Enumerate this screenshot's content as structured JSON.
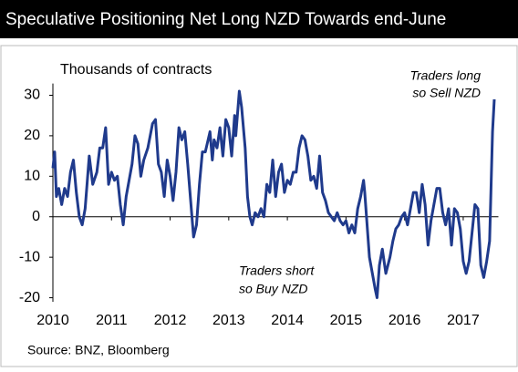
{
  "chart_data": {
    "type": "line",
    "title": "Speculative Positioning Net Long NZD Towards end-June",
    "y_label": "Thousands of contracts",
    "source": "Source: BNZ, Bloomberg",
    "annotations": [
      [
        "Traders long",
        "so Sell NZD"
      ],
      [
        "Traders short",
        "so Buy NZD"
      ]
    ],
    "xlim": [
      2010,
      2017.6
    ],
    "xticks": [
      2010,
      2011,
      2012,
      2013,
      2014,
      2015,
      2016,
      2017
    ],
    "ylim": [
      -21,
      32
    ],
    "yticks": [
      -20,
      -10,
      0,
      10,
      20,
      30
    ],
    "x": [
      2010.0,
      2010.03,
      2010.06,
      2010.1,
      2010.15,
      2010.2,
      2010.25,
      2010.3,
      2010.35,
      2010.4,
      2010.45,
      2010.5,
      2010.55,
      2010.62,
      2010.68,
      2010.75,
      2010.8,
      2010.85,
      2010.9,
      2010.95,
      2011.0,
      2011.05,
      2011.1,
      2011.15,
      2011.2,
      2011.25,
      2011.3,
      2011.35,
      2011.4,
      2011.45,
      2011.5,
      2011.55,
      2011.62,
      2011.7,
      2011.75,
      2011.8,
      2011.85,
      2011.9,
      2011.95,
      2012.0,
      2012.05,
      2012.1,
      2012.15,
      2012.2,
      2012.25,
      2012.3,
      2012.35,
      2012.4,
      2012.45,
      2012.5,
      2012.55,
      2012.6,
      2012.68,
      2012.72,
      2012.75,
      2012.8,
      2012.85,
      2012.9,
      2012.95,
      2013.0,
      2013.05,
      2013.1,
      2013.12,
      2013.18,
      2013.22,
      2013.28,
      2013.32,
      2013.36,
      2013.4,
      2013.45,
      2013.5,
      2013.55,
      2013.6,
      2013.65,
      2013.7,
      2013.75,
      2013.8,
      2013.85,
      2013.9,
      2013.95,
      2014.0,
      2014.05,
      2014.1,
      2014.15,
      2014.2,
      2014.25,
      2014.3,
      2014.35,
      2014.4,
      2014.45,
      2014.5,
      2014.55,
      2014.6,
      2014.65,
      2014.7,
      2014.75,
      2014.8,
      2014.85,
      2014.9,
      2014.95,
      2015.0,
      2015.05,
      2015.1,
      2015.15,
      2015.2,
      2015.25,
      2015.3,
      2015.32,
      2015.36,
      2015.4,
      2015.45,
      2015.5,
      2015.53,
      2015.57,
      2015.62,
      2015.68,
      2015.75,
      2015.8,
      2015.85,
      2015.9,
      2015.95,
      2016.0,
      2016.05,
      2016.1,
      2016.15,
      2016.2,
      2016.25,
      2016.3,
      2016.35,
      2016.4,
      2016.45,
      2016.5,
      2016.55,
      2016.6,
      2016.65,
      2016.7,
      2016.75,
      2016.8,
      2016.85,
      2016.9,
      2016.95,
      2017.0,
      2017.05,
      2017.1,
      2017.15,
      2017.2,
      2017.25,
      2017.3,
      2017.35,
      2017.4,
      2017.45,
      2017.5,
      2017.53
    ],
    "series": [
      {
        "name": "Net long NZD",
        "color": "#1f3a8c",
        "values": [
          12,
          16,
          5,
          7,
          3,
          7,
          5,
          11,
          14,
          6,
          0,
          -2,
          2,
          15,
          8,
          11,
          17,
          17,
          22,
          8,
          11,
          9,
          10,
          3,
          -2,
          5,
          9,
          13,
          20,
          18,
          10,
          14,
          17,
          23,
          24,
          13,
          11,
          5,
          14,
          10,
          4,
          11,
          22,
          19,
          21,
          13,
          4,
          -5,
          -2,
          8,
          16,
          16,
          21,
          14,
          19,
          17,
          22,
          15,
          24,
          22,
          15,
          25,
          20,
          31,
          27,
          17,
          5,
          0,
          -2,
          1,
          0,
          2,
          0,
          8,
          6,
          14,
          5,
          11,
          13,
          6,
          9,
          8,
          11,
          11,
          17,
          20,
          19,
          15,
          9,
          10,
          7,
          15,
          6,
          4,
          1,
          0,
          -1,
          1,
          -1,
          -2,
          -1,
          -4,
          -2,
          -4,
          2,
          5,
          9,
          6,
          -2,
          -10,
          -14,
          -18,
          -20,
          -12,
          -8,
          -14,
          -10,
          -6,
          -3,
          -2,
          0,
          1,
          -2,
          2,
          6,
          6,
          1,
          8,
          3,
          -7,
          -1,
          3,
          7,
          7,
          1,
          -2,
          2,
          -7,
          2,
          1,
          -3,
          -11,
          -14,
          -11,
          -4,
          3,
          2,
          -12,
          -15,
          -11,
          -6,
          21,
          29
        ]
      }
    ]
  }
}
